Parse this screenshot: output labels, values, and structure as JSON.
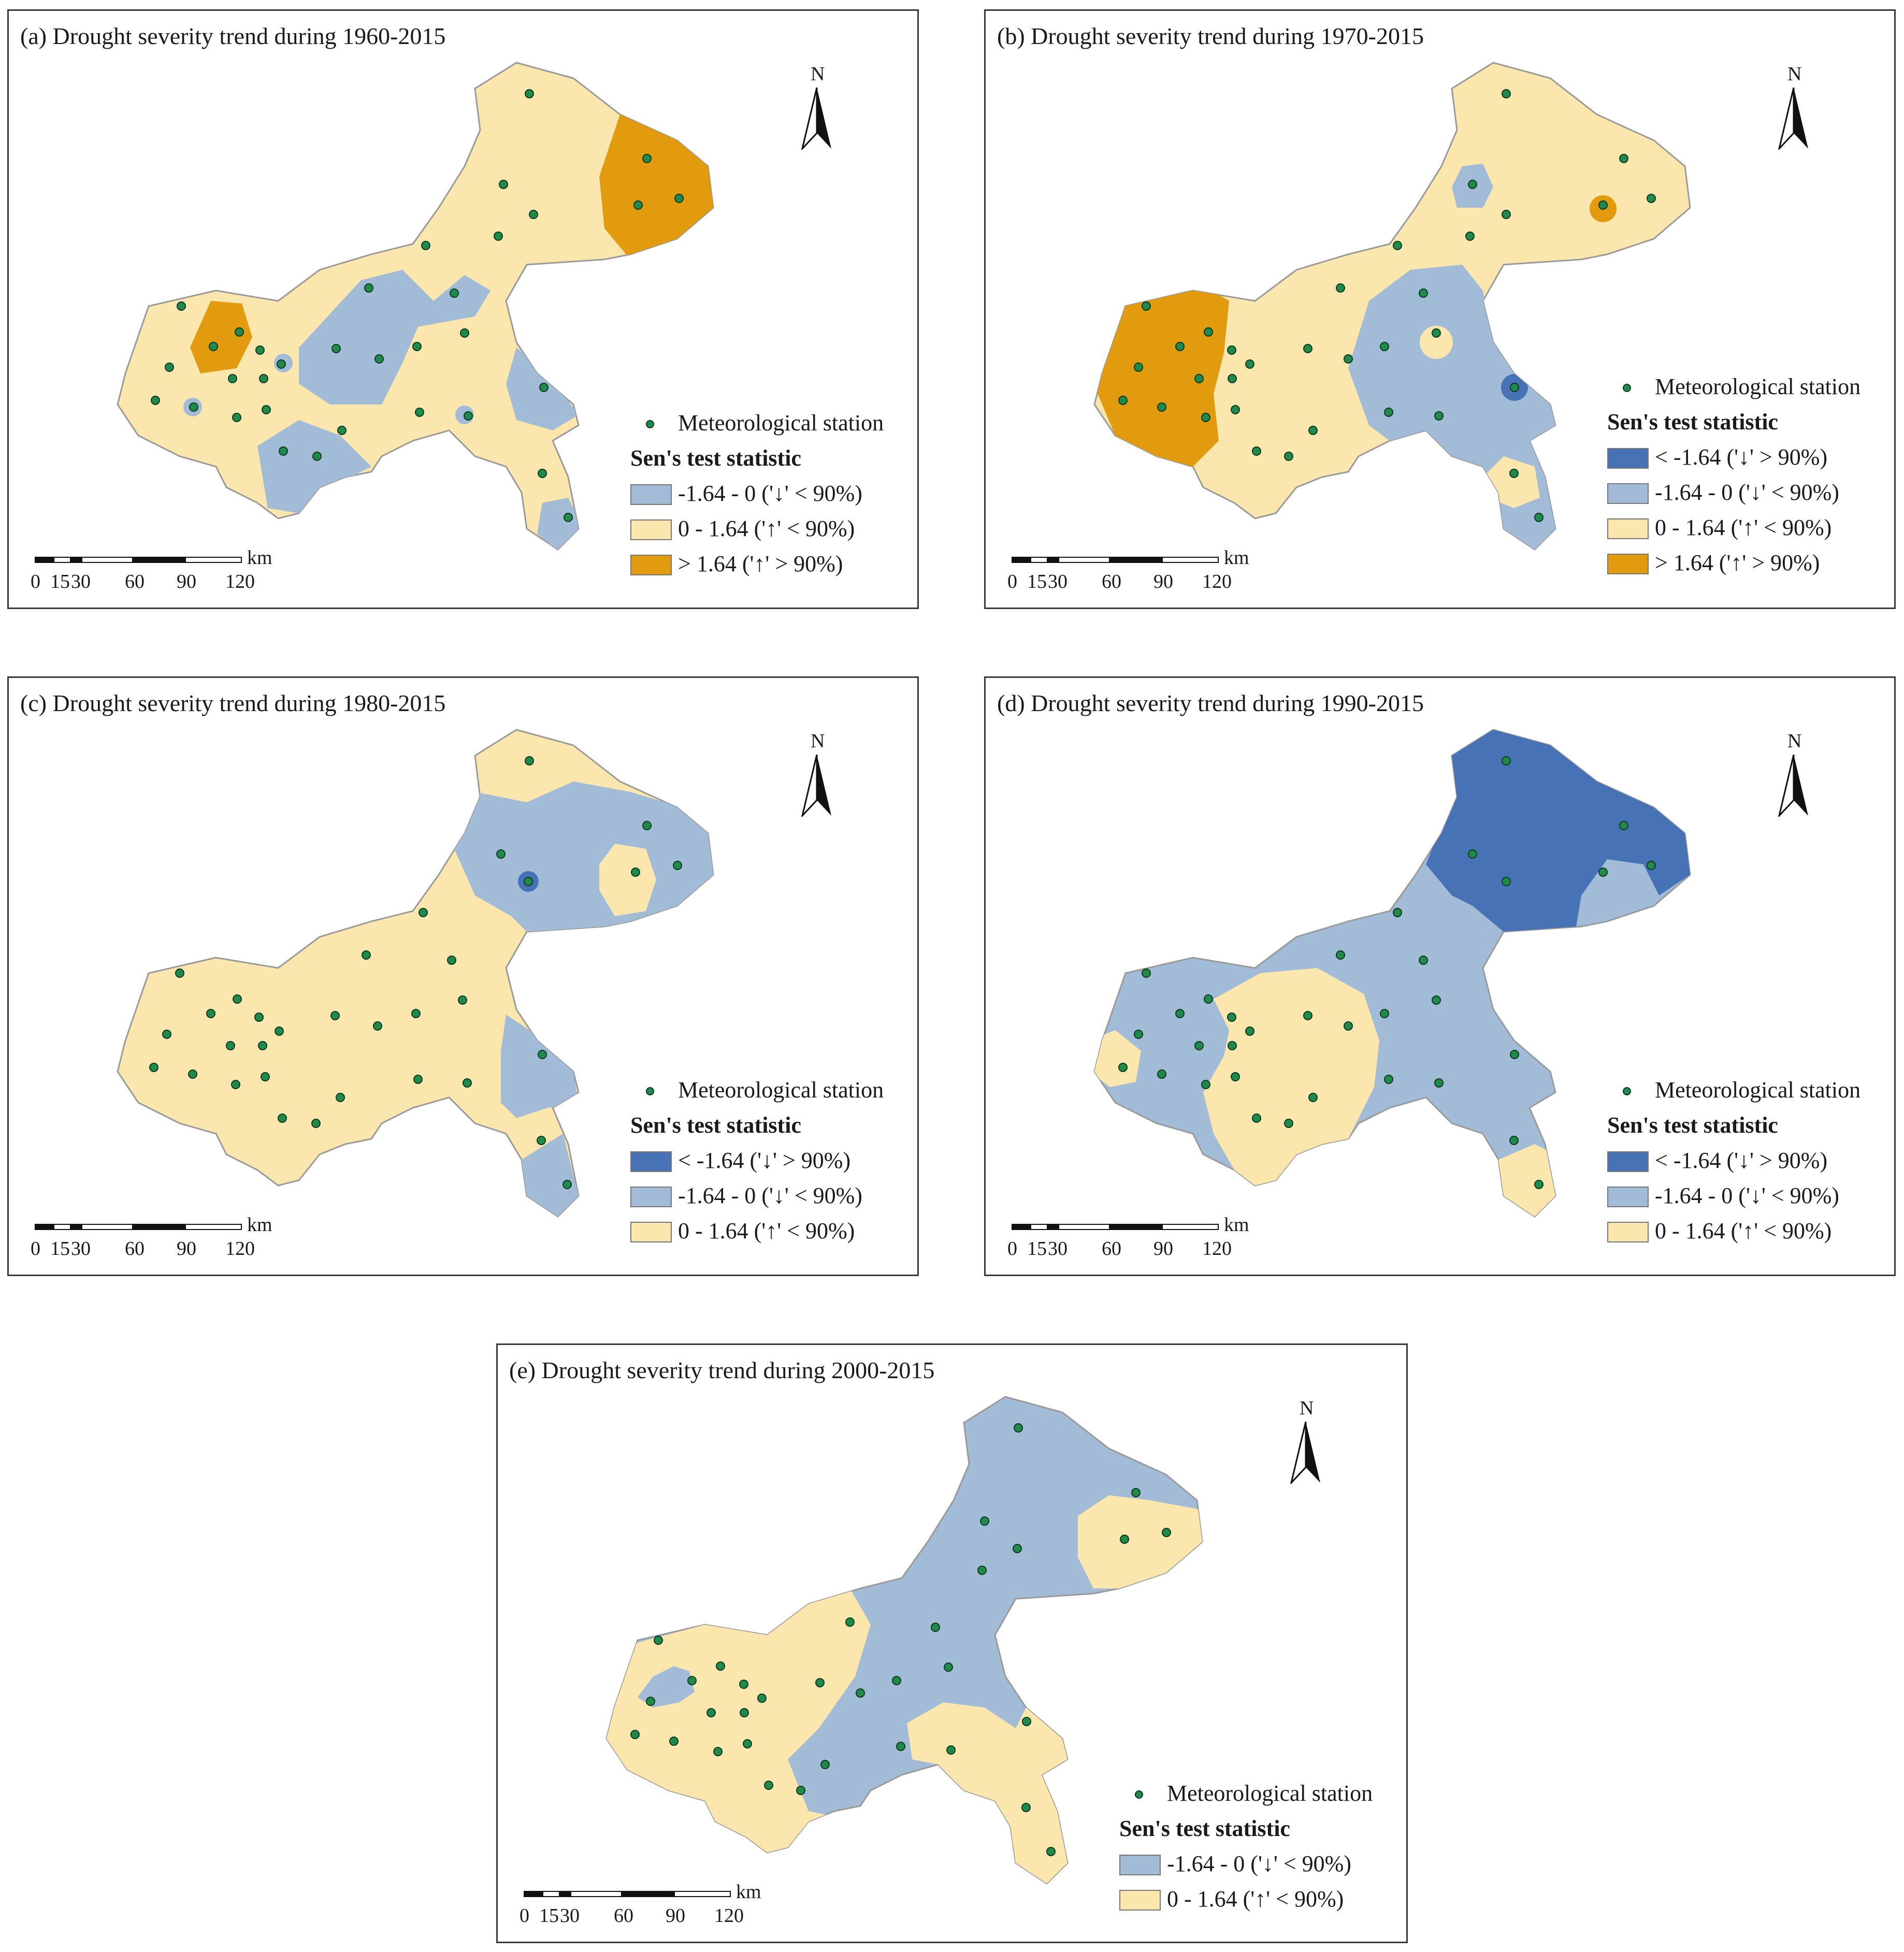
{
  "colors": {
    "strong_decrease": "#4872b6",
    "weak_decrease": "#a2bcd8",
    "weak_increase": "#fbe6ae",
    "strong_increase": "#e29a0e",
    "station": "#1f8a4c"
  },
  "north_label": "N",
  "scale": {
    "ticks": [
      "0",
      "15",
      "30",
      "60",
      "90",
      "120"
    ],
    "unit": "km"
  },
  "legend_labels": {
    "station": "Meteorological station",
    "header": "Sen's test statistic",
    "strong_decrease": "< -1.64 ('↓' > 90%)",
    "weak_decrease": "-1.64 - 0 ('↓' < 90%)",
    "weak_increase": "0 - 1.64 ('↑' < 90%)",
    "strong_increase": "> 1.64 ('↑' > 90%)"
  },
  "panels": [
    {
      "id": "a",
      "title": "(a) Drought severity trend during 1960-2015",
      "base": "weak_increase",
      "legend_classes": [
        "weak_decrease",
        "weak_increase",
        "strong_increase"
      ]
    },
    {
      "id": "b",
      "title": "(b) Drought severity trend during 1970-2015",
      "base": "weak_increase",
      "legend_classes": [
        "strong_decrease",
        "weak_decrease",
        "weak_increase",
        "strong_increase"
      ]
    },
    {
      "id": "c",
      "title": "(c) Drought severity trend during 1980-2015",
      "base": "weak_increase",
      "legend_classes": [
        "strong_decrease",
        "weak_decrease",
        "weak_increase"
      ]
    },
    {
      "id": "d",
      "title": "(d) Drought severity trend during 1990-2015",
      "base": "weak_decrease",
      "legend_classes": [
        "strong_decrease",
        "weak_decrease",
        "weak_increase"
      ]
    },
    {
      "id": "e",
      "title": "(e) Drought severity trend during 2000-2015",
      "base": "weak_decrease",
      "legend_classes": [
        "weak_decrease",
        "weak_increase"
      ]
    }
  ]
}
